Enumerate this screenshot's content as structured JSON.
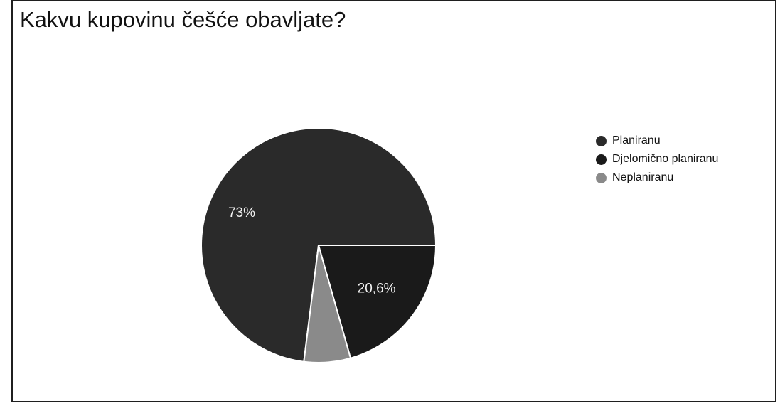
{
  "chart_data": {
    "type": "pie",
    "title": "Kakvu kupovinu češće obavljate?",
    "slices": [
      {
        "label": "Planiranu",
        "value": 73,
        "value_label": "73%",
        "color": "#2a2a2a"
      },
      {
        "label": "Djelomično planiranu",
        "value": 20.6,
        "value_label": "20,6%",
        "color": "#1a1a1a"
      },
      {
        "label": "Neplaniranu",
        "value": 6.4,
        "value_label": "",
        "color": "#8a8a8a"
      }
    ],
    "legend_position": "right"
  }
}
